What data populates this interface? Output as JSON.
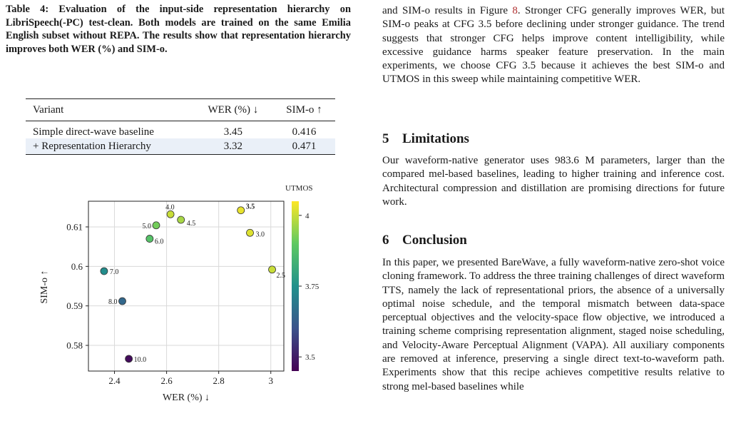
{
  "left": {
    "caption": "Table 4: Evaluation of the input-side representation hierarchy on LibriSpeech(-PC) test-clean. Both models are trained on the same Emilia English subset without REPA. The results show that representation hierarchy improves both WER (%) and SIM-o.",
    "table": {
      "headers": [
        "Variant",
        "WER (%) ↓",
        "SIM-o ↑"
      ],
      "rows": [
        {
          "variant": "Simple direct-wave baseline",
          "wer": "3.45",
          "sim": "0.416"
        },
        {
          "variant": "+ Representation Hierarchy",
          "wer": "3.32",
          "sim": "0.471"
        }
      ]
    }
  },
  "chart_data": {
    "type": "scatter",
    "title": "",
    "xlabel": "WER (%) ↓",
    "ylabel": "SIM-o ↑",
    "xlim": [
      2.3,
      3.05
    ],
    "ylim": [
      0.5735,
      0.6165
    ],
    "xticks": [
      "2.4",
      "2.6",
      "2.8",
      "3"
    ],
    "xtick_values": [
      2.4,
      2.6,
      2.8,
      3.0
    ],
    "yticks": [
      "0.58",
      "0.59",
      "0.6",
      "0.61"
    ],
    "ytick_values": [
      0.58,
      0.59,
      0.6,
      0.61
    ],
    "grid": true,
    "colorbar": {
      "label": "UTMOS",
      "min": 3.45,
      "max": 4.05,
      "ticks": [
        "3.5",
        "3.75",
        "4"
      ],
      "tick_values": [
        3.5,
        3.75,
        4.0
      ]
    },
    "points": [
      {
        "cfg": "2.5",
        "wer": 3.005,
        "sim": 0.5992,
        "utmos": 4.0,
        "bold": false
      },
      {
        "cfg": "3.0",
        "wer": 2.92,
        "sim": 0.6085,
        "utmos": 4.02,
        "bold": false
      },
      {
        "cfg": "3.5",
        "wer": 2.885,
        "sim": 0.6142,
        "utmos": 4.03,
        "bold": true
      },
      {
        "cfg": "4.0",
        "wer": 2.615,
        "sim": 0.6132,
        "utmos": 4.0,
        "bold": false
      },
      {
        "cfg": "4.5",
        "wer": 2.655,
        "sim": 0.6118,
        "utmos": 3.97,
        "bold": false
      },
      {
        "cfg": "5.0",
        "wer": 2.56,
        "sim": 0.6104,
        "utmos": 3.92,
        "bold": false
      },
      {
        "cfg": "6.0",
        "wer": 2.535,
        "sim": 0.607,
        "utmos": 3.88,
        "bold": false
      },
      {
        "cfg": "7.0",
        "wer": 2.36,
        "sim": 0.5988,
        "utmos": 3.74,
        "bold": false
      },
      {
        "cfg": "8.0",
        "wer": 2.43,
        "sim": 0.5912,
        "utmos": 3.65,
        "bold": false
      },
      {
        "cfg": "10.0",
        "wer": 2.455,
        "sim": 0.5766,
        "utmos": 3.47,
        "bold": false
      }
    ]
  },
  "right": {
    "p1_before": "and SIM-o results in Figure ",
    "p1_ref": "8",
    "p1_after": ". Stronger CFG generally improves WER, but SIM-o peaks at CFG 3.5 before declining under stronger guidance. The trend suggests that stronger CFG helps improve content intelligibility, while excessive guidance harms speaker feature preservation. In the main experiments, we choose CFG 3.5 because it achieves the best SIM-o and UTMOS in this sweep while maintaining competitive WER.",
    "sec5_num": "5",
    "sec5_title": "Limitations",
    "p2": "Our waveform-native generator uses 983.6 M parameters, larger than the compared mel-based baselines, leading to higher training and inference cost. Architectural compression and distillation are promising directions for future work.",
    "sec6_num": "6",
    "sec6_title": "Conclusion",
    "p3": "In this paper, we presented BareWave, a fully waveform-native zero-shot voice cloning framework. To address the three training challenges of direct waveform TTS, namely the lack of representational priors, the absence of a universally optimal noise schedule, and the temporal mismatch between data-space perceptual objectives and the velocity-space flow objective, we introduced a training scheme comprising representation alignment, staged noise scheduling, and Velocity-Aware Perceptual Alignment (VAPA). All auxiliary components are removed at inference, preserving a single direct text-to-waveform path. Experiments show that this recipe achieves competitive results relative to strong mel-based baselines while"
  }
}
